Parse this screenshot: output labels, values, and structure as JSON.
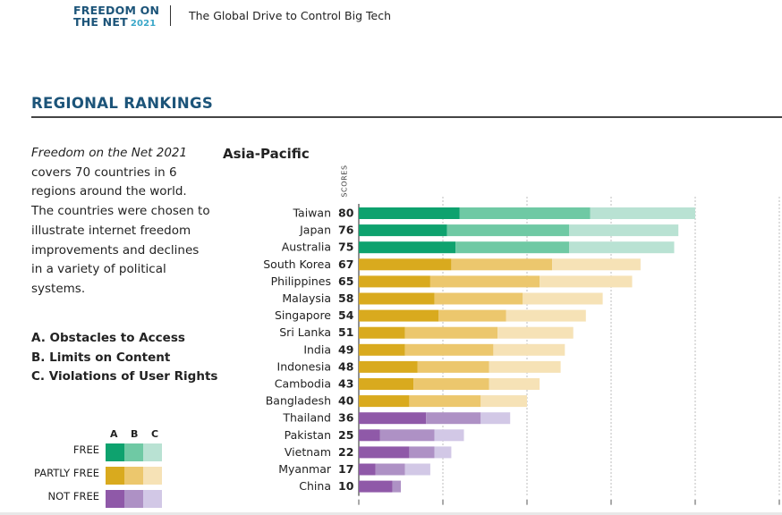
{
  "header": {
    "logo_line1": "FREEDOM ON",
    "logo_line2": "THE NET",
    "logo_year": "2021",
    "subtitle": "The Global Drive to Control Big Tech"
  },
  "section_title": "REGIONAL RANKINGS",
  "intro": {
    "italic_title": "Freedom on the Net 2021",
    "text": " covers 70 countries in 6 regions around the world. The countries were chosen to illustrate internet freedom improvements and declines in a variety of political systems."
  },
  "legend": {
    "items": [
      "A. Obstacles to Access",
      "B. Limits on Content",
      "C. Violations of User Rights"
    ],
    "columns": [
      "A",
      "B",
      "C"
    ],
    "statuses": [
      {
        "label": "FREE",
        "colors": [
          "#0ea26e",
          "#6fc9a4",
          "#b9e2d3"
        ]
      },
      {
        "label": "PARTLY FREE",
        "colors": [
          "#d9aa1e",
          "#ecc76d",
          "#f6e2b6"
        ]
      },
      {
        "label": "NOT FREE",
        "colors": [
          "#8f59a8",
          "#ae91c5",
          "#d2c8e6"
        ]
      }
    ]
  },
  "chart_data": {
    "type": "bar",
    "orientation": "horizontal",
    "stacked": true,
    "title": "Asia-Pacific",
    "ylabel": "SCORES",
    "xlim": [
      0,
      100
    ],
    "grid": true,
    "categories": [
      "Taiwan",
      "Japan",
      "Australia",
      "South Korea",
      "Philippines",
      "Malaysia",
      "Singapore",
      "Sri Lanka",
      "India",
      "Indonesia",
      "Cambodia",
      "Bangladesh",
      "Thailand",
      "Pakistan",
      "Vietnam",
      "Myanmar",
      "China"
    ],
    "totals": [
      80,
      76,
      75,
      67,
      65,
      58,
      54,
      51,
      49,
      48,
      43,
      40,
      36,
      25,
      22,
      17,
      10
    ],
    "status": [
      "free",
      "free",
      "free",
      "partly",
      "partly",
      "partly",
      "partly",
      "partly",
      "partly",
      "partly",
      "partly",
      "partly",
      "not",
      "not",
      "not",
      "not",
      "not"
    ],
    "series": [
      {
        "name": "A. Obstacles to Access",
        "values": [
          24,
          21,
          23,
          22,
          17,
          18,
          19,
          11,
          11,
          14,
          13,
          12,
          16,
          5,
          12,
          4,
          8
        ]
      },
      {
        "name": "B. Limits on Content",
        "values": [
          31,
          29,
          27,
          24,
          26,
          21,
          16,
          22,
          21,
          17,
          18,
          17,
          13,
          13,
          6,
          7,
          2
        ]
      },
      {
        "name": "C. Violations of User Rights",
        "values": [
          25,
          26,
          25,
          21,
          22,
          19,
          19,
          18,
          17,
          17,
          12,
          11,
          7,
          7,
          4,
          6,
          0
        ]
      }
    ],
    "colors": {
      "free": [
        "#0ea26e",
        "#6fc9a4",
        "#b9e2d3"
      ],
      "partly": [
        "#d9aa1e",
        "#ecc76d",
        "#f6e2b6"
      ],
      "not": [
        "#8f59a8",
        "#ae91c5",
        "#d2c8e6"
      ]
    }
  }
}
